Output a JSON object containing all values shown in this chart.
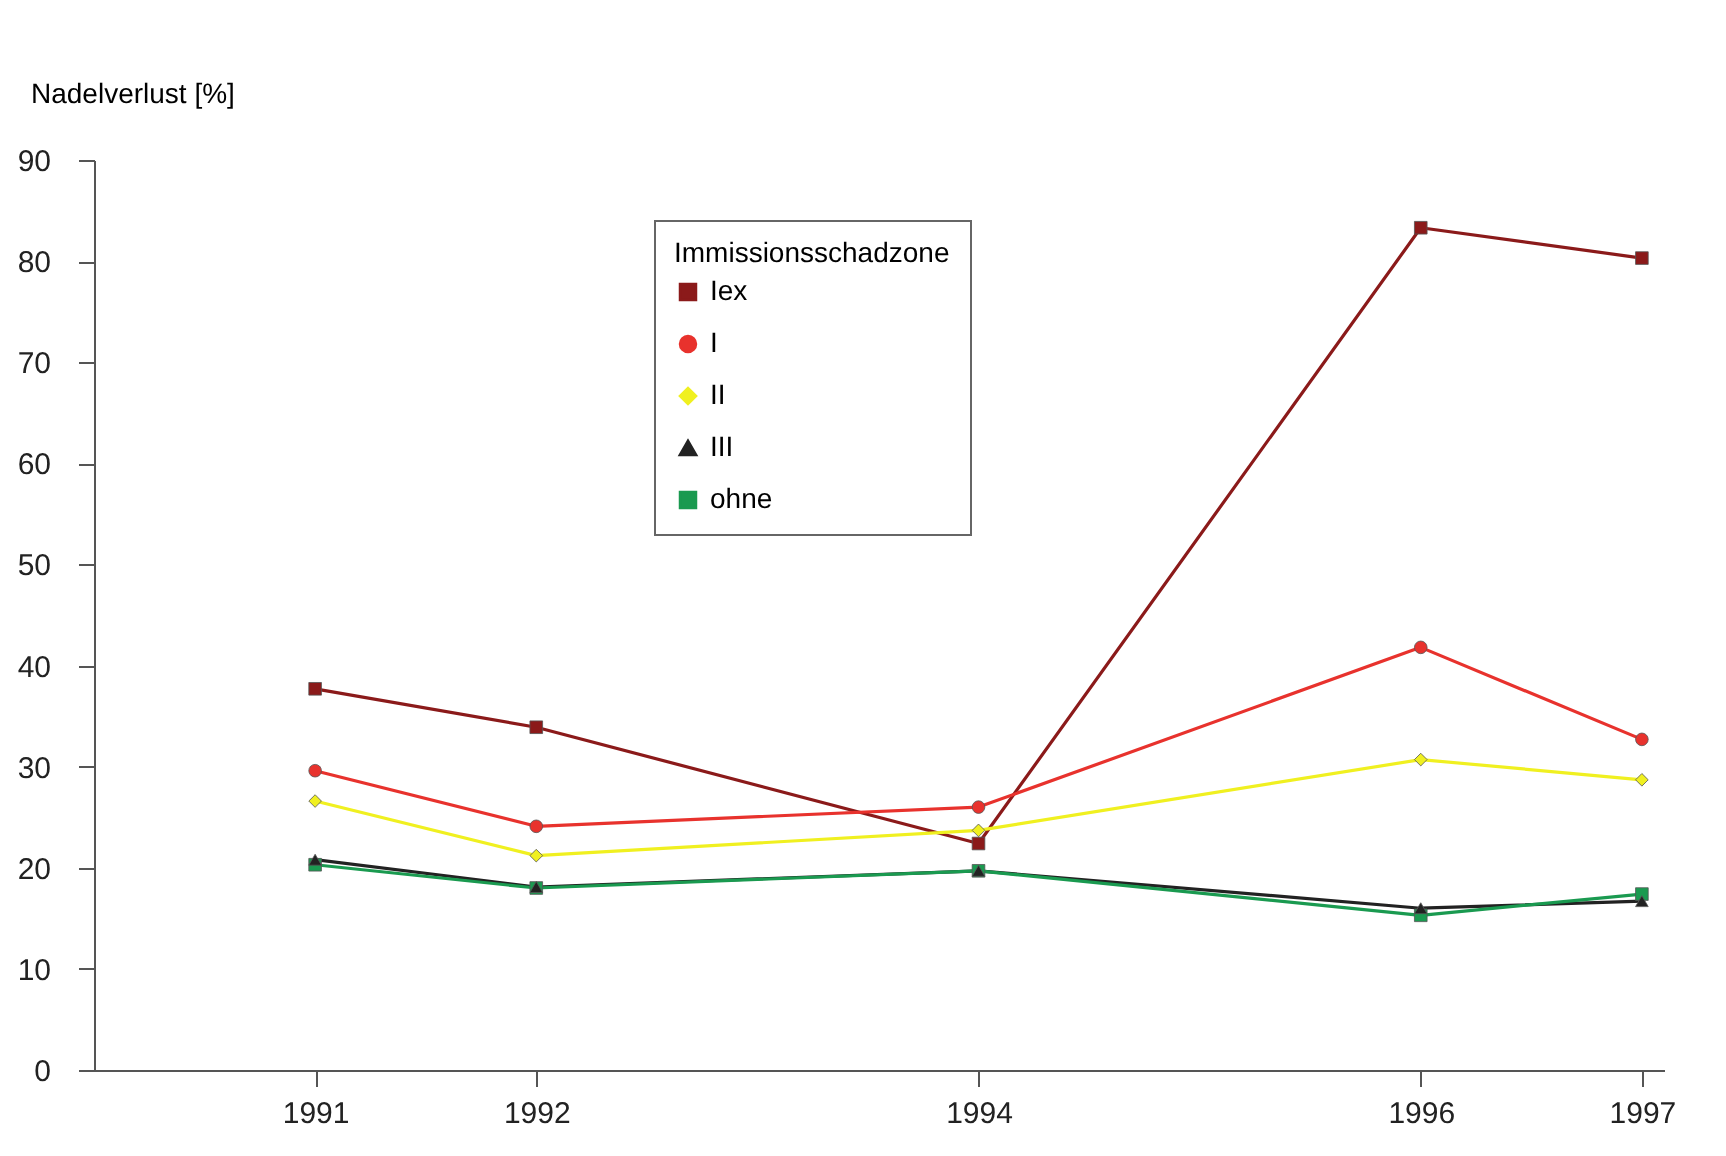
{
  "chart_data": {
    "type": "line",
    "ylabel": "Nadelverlust [%]",
    "legend_title": "Immissionsschadzone",
    "x": [
      1991,
      1992,
      1994,
      1996,
      1997
    ],
    "xlim": [
      1990,
      1997.1
    ],
    "xticks": [
      1991,
      1992,
      1994,
      1996,
      1997
    ],
    "ylim": [
      0,
      90
    ],
    "yticks": [
      0,
      10,
      20,
      30,
      40,
      50,
      60,
      70,
      80,
      90
    ],
    "grid": false,
    "legend": "top",
    "line_style": "solid",
    "series": [
      {
        "name": "Iex",
        "color": "#8b1a1a",
        "marker": "square",
        "values": [
          37.7,
          33.9,
          22.4,
          83.3,
          80.3
        ]
      },
      {
        "name": "I",
        "color": "#e8322d",
        "marker": "circle",
        "values": [
          29.6,
          24.1,
          26.0,
          41.8,
          32.7
        ]
      },
      {
        "name": "II",
        "color": "#f0f020",
        "marker": "diamond",
        "values": [
          26.6,
          21.2,
          23.7,
          30.7,
          28.7
        ]
      },
      {
        "name": "III",
        "color": "#222222",
        "marker": "triangle",
        "values": [
          20.8,
          18.1,
          19.7,
          16.0,
          16.7
        ]
      },
      {
        "name": "ohne",
        "color": "#1a9a50",
        "marker": "square",
        "values": [
          20.3,
          18.0,
          19.7,
          15.3,
          17.4
        ]
      }
    ]
  }
}
